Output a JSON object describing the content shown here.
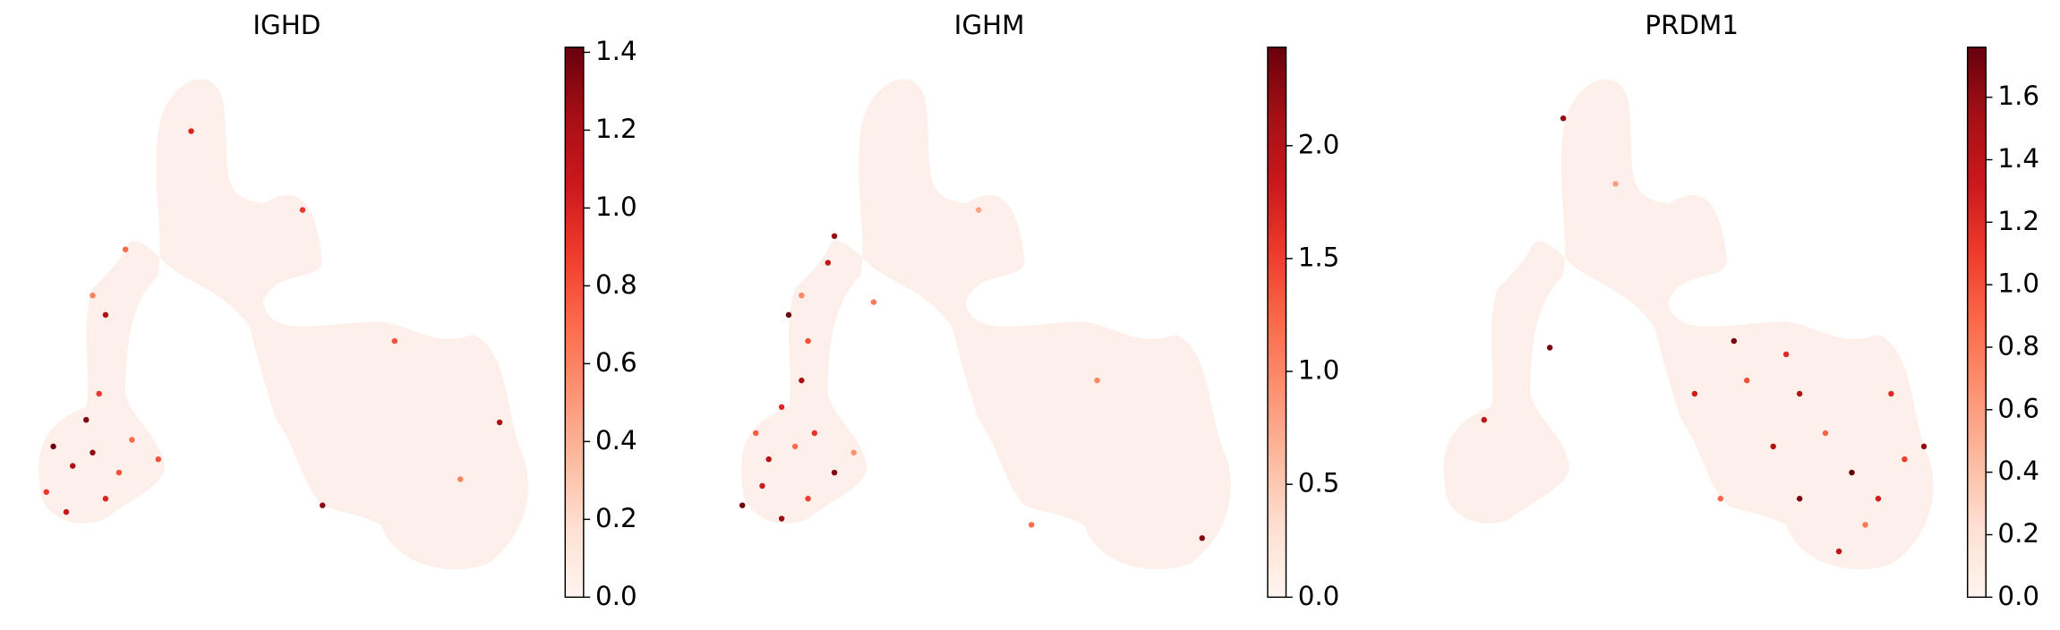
{
  "chart_data": [
    {
      "type": "scatter",
      "title": "IGHD",
      "xlim": [
        0,
        100
      ],
      "ylim": [
        0,
        100
      ],
      "x": [
        9.8,
        13.4,
        8.5,
        17.1,
        22,
        12.2,
        19.5,
        24.4,
        15.9,
        18.3,
        19.5,
        17.1,
        29.3,
        23.2,
        35.4,
        56.1,
        59.8,
        92.7,
        85.4,
        73.2
      ],
      "y": [
        25.6,
        21.8,
        16.7,
        24.4,
        20.5,
        12.8,
        15.4,
        26.9,
        30.8,
        35.9,
        51.3,
        55.1,
        23.1,
        64.1,
        87.2,
        71.8,
        14.1,
        30.3,
        19.2,
        46.2
      ],
      "values": [
        1.41,
        1.2,
        0.9,
        1.3,
        0.8,
        1.1,
        1.0,
        0.7,
        1.35,
        0.9,
        1.2,
        0.6,
        0.8,
        0.7,
        1.0,
        0.9,
        1.3,
        1.2,
        0.6,
        0.8
      ],
      "clim": [
        0,
        1.413
      ],
      "cticks": [
        {
          "value": 0,
          "label": "0.0"
        },
        0.2,
        0.4,
        0.6,
        0.8,
        {
          "value": 1,
          "label": "1.0"
        },
        1.2,
        1.4
      ],
      "colormap": [
        "#fff5f0",
        "#fee0d2",
        "#fcbba1",
        "#fc9272",
        "#fb6a4a",
        "#ef3b2c",
        "#cb181d",
        "#a50f15",
        "#67000d"
      ]
    },
    {
      "type": "scatter",
      "title": "IGHM",
      "xlim": [
        0,
        100
      ],
      "ylim": [
        0,
        100
      ],
      "x": [
        7.3,
        11,
        14.6,
        19.5,
        12.2,
        17.1,
        24.4,
        28,
        14.6,
        18.3,
        19.5,
        15.9,
        18.3,
        23.2,
        24.4,
        20.7,
        9.8,
        31.7,
        51.2,
        73.2,
        92.7,
        61
      ],
      "y": [
        14.1,
        17.9,
        11.5,
        15.4,
        23.1,
        25.6,
        20.5,
        24.4,
        33.3,
        38.5,
        46.2,
        51.3,
        55.1,
        61.5,
        66.7,
        28.2,
        28.2,
        53.8,
        71.8,
        38.5,
        7.7,
        10.3
      ],
      "values": [
        2.4,
        1.8,
        2.2,
        1.5,
        2.0,
        1.2,
        2.3,
        0.9,
        1.7,
        2.1,
        1.4,
        2.4,
        1.0,
        1.9,
        2.2,
        1.6,
        1.3,
        1.1,
        0.8,
        1.0,
        2.3,
        1.2
      ],
      "clim": [
        0,
        2.436
      ],
      "cticks": [
        {
          "value": 0,
          "label": "0.0"
        },
        0.5,
        {
          "value": 1,
          "label": "1.0"
        },
        1.5,
        {
          "value": 2,
          "label": "2.0"
        }
      ],
      "colormap": [
        "#fff5f0",
        "#fee0d2",
        "#fcbba1",
        "#fc9272",
        "#fb6a4a",
        "#ef3b2c",
        "#cb181d",
        "#a50f15",
        "#67000d"
      ]
    },
    {
      "type": "scatter",
      "title": "PRDM1",
      "xlim": [
        0,
        100
      ],
      "ylim": [
        0,
        100
      ],
      "x": [
        61,
        70.7,
        73.2,
        78,
        82.9,
        87.8,
        92.7,
        96.3,
        85.4,
        80.5,
        73.2,
        63.4,
        68.3,
        90.2,
        58.5,
        53.7,
        29.3,
        14.6,
        26.8,
        39
      ],
      "y": [
        46.2,
        43.6,
        35.9,
        28.2,
        20.5,
        15.4,
        23.1,
        25.6,
        10.3,
        5.1,
        15.4,
        38.5,
        25.6,
        35.9,
        15.4,
        35.9,
        89.7,
        30.8,
        44.9,
        76.9
      ],
      "values": [
        1.7,
        1.2,
        1.5,
        0.9,
        1.76,
        1.3,
        1.1,
        1.6,
        0.8,
        1.4,
        1.7,
        1.0,
        1.5,
        1.2,
        0.9,
        1.3,
        1.6,
        1.4,
        1.7,
        0.6
      ],
      "clim": [
        0,
        1.76
      ],
      "cticks": [
        {
          "value": 0,
          "label": "0.0"
        },
        0.2,
        0.4,
        0.6,
        0.8,
        {
          "value": 1,
          "label": "1.0"
        },
        1.2,
        1.4,
        1.6
      ],
      "colormap": [
        "#fff5f0",
        "#fee0d2",
        "#fcbba1",
        "#fc9272",
        "#fb6a4a",
        "#ef3b2c",
        "#cb181d",
        "#a50f15",
        "#67000d"
      ]
    }
  ]
}
